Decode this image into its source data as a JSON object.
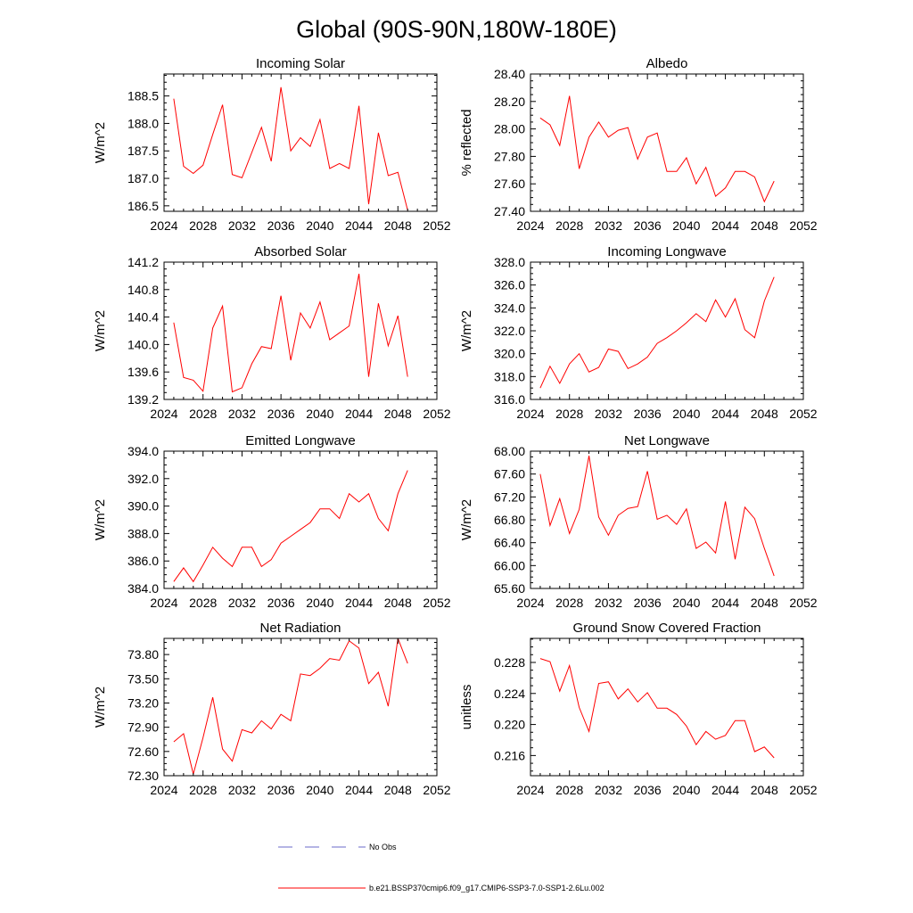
{
  "title": "Global (90S-90N,180W-180E)",
  "colors": {
    "model": "#ff0000",
    "obs": "#6a6ac8",
    "axis": "#000000"
  },
  "legend": {
    "obs_label": "No Obs",
    "model_label": "b.e21.BSSP370cmip6.f09_g17.CMIP6-SSP3-7.0-SSP1-2.6Lu.002"
  },
  "chart_data": [
    {
      "type": "line",
      "title": "Incoming Solar",
      "xlabel": "",
      "ylabel": "W/m^2",
      "xlim": [
        2024,
        2052
      ],
      "ylim": [
        186.4,
        188.9
      ],
      "grid": false,
      "xticks": [
        2024,
        2028,
        2032,
        2036,
        2040,
        2044,
        2048,
        2052
      ],
      "xtick_labels": [
        "2024",
        "2028",
        "2032",
        "2036",
        "2040",
        "2044",
        "2048",
        "2052"
      ],
      "yticks": [
        186.5,
        187.0,
        187.5,
        188.0,
        188.5
      ],
      "ytick_labels": [
        "186.5",
        "187.0",
        "187.5",
        "188.0",
        "188.5"
      ],
      "x": [
        2025,
        2026,
        2027,
        2028,
        2029,
        2030,
        2031,
        2032,
        2033,
        2034,
        2035,
        2036,
        2037,
        2038,
        2039,
        2040,
        2041,
        2042,
        2043,
        2044,
        2045,
        2046,
        2047,
        2048,
        2049
      ],
      "y": [
        188.45,
        187.22,
        187.09,
        187.24,
        187.8,
        188.34,
        187.07,
        187.01,
        187.47,
        187.93,
        187.31,
        188.66,
        187.5,
        187.74,
        187.58,
        188.07,
        187.18,
        187.27,
        187.18,
        188.32,
        186.53,
        187.83,
        187.05,
        187.11,
        186.42
      ],
      "series_name": "b.e21.BSSP370cmip6.f09_g17.CMIP6-SSP3-7.0-SSP1-2.6Lu.002"
    },
    {
      "type": "line",
      "title": "Albedo",
      "xlabel": "",
      "ylabel": "% reflected",
      "xlim": [
        2024,
        2052
      ],
      "ylim": [
        27.4,
        28.4
      ],
      "grid": false,
      "xticks": [
        2024,
        2028,
        2032,
        2036,
        2040,
        2044,
        2048,
        2052
      ],
      "xtick_labels": [
        "2024",
        "2028",
        "2032",
        "2036",
        "2040",
        "2044",
        "2048",
        "2052"
      ],
      "yticks": [
        27.4,
        27.6,
        27.8,
        28.0,
        28.2,
        28.4
      ],
      "ytick_labels": [
        "27.40",
        "27.60",
        "27.80",
        "28.00",
        "28.20",
        "28.40"
      ],
      "x": [
        2025,
        2026,
        2027,
        2028,
        2029,
        2030,
        2031,
        2032,
        2033,
        2034,
        2035,
        2036,
        2037,
        2038,
        2039,
        2040,
        2041,
        2042,
        2043,
        2044,
        2045,
        2046,
        2047,
        2048,
        2049
      ],
      "y": [
        28.08,
        28.03,
        27.88,
        28.24,
        27.71,
        27.94,
        28.05,
        27.94,
        27.99,
        28.01,
        27.78,
        27.94,
        27.97,
        27.69,
        27.69,
        27.79,
        27.6,
        27.72,
        27.51,
        27.57,
        27.69,
        27.69,
        27.65,
        27.47,
        27.62
      ],
      "series_name": "b.e21.BSSP370cmip6.f09_g17.CMIP6-SSP3-7.0-SSP1-2.6Lu.002"
    },
    {
      "type": "line",
      "title": "Absorbed Solar",
      "xlabel": "",
      "ylabel": "W/m^2",
      "xlim": [
        2024,
        2052
      ],
      "ylim": [
        139.2,
        141.2
      ],
      "grid": false,
      "xticks": [
        2024,
        2028,
        2032,
        2036,
        2040,
        2044,
        2048,
        2052
      ],
      "xtick_labels": [
        "2024",
        "2028",
        "2032",
        "2036",
        "2040",
        "2044",
        "2048",
        "2052"
      ],
      "yticks": [
        139.2,
        139.6,
        140.0,
        140.4,
        140.8,
        141.2
      ],
      "ytick_labels": [
        "139.2",
        "139.6",
        "140.0",
        "140.4",
        "140.8",
        "141.2"
      ],
      "x": [
        2025,
        2026,
        2027,
        2028,
        2029,
        2030,
        2031,
        2032,
        2033,
        2034,
        2035,
        2036,
        2037,
        2038,
        2039,
        2040,
        2041,
        2042,
        2043,
        2044,
        2045,
        2046,
        2047,
        2048,
        2049
      ],
      "y": [
        140.32,
        139.52,
        139.48,
        139.32,
        140.24,
        140.56,
        139.31,
        139.37,
        139.72,
        139.97,
        139.94,
        140.71,
        139.77,
        140.46,
        140.24,
        140.62,
        140.07,
        140.17,
        140.27,
        141.03,
        139.53,
        140.6,
        139.98,
        140.42,
        139.53
      ],
      "series_name": "b.e21.BSSP370cmip6.f09_g17.CMIP6-SSP3-7.0-SSP1-2.6Lu.002"
    },
    {
      "type": "line",
      "title": "Incoming Longwave",
      "xlabel": "",
      "ylabel": "W/m^2",
      "xlim": [
        2024,
        2052
      ],
      "ylim": [
        316.0,
        328.0
      ],
      "grid": false,
      "xticks": [
        2024,
        2028,
        2032,
        2036,
        2040,
        2044,
        2048,
        2052
      ],
      "xtick_labels": [
        "2024",
        "2028",
        "2032",
        "2036",
        "2040",
        "2044",
        "2048",
        "2052"
      ],
      "yticks": [
        316,
        318,
        320,
        322,
        324,
        326,
        328
      ],
      "ytick_labels": [
        "316.0",
        "318.0",
        "320.0",
        "322.0",
        "324.0",
        "326.0",
        "328.0"
      ],
      "x": [
        2025,
        2026,
        2027,
        2028,
        2029,
        2030,
        2031,
        2032,
        2033,
        2034,
        2035,
        2036,
        2037,
        2038,
        2039,
        2040,
        2041,
        2042,
        2043,
        2044,
        2045,
        2046,
        2047,
        2048,
        2049
      ],
      "y": [
        317.0,
        318.9,
        317.4,
        319.1,
        320.0,
        318.4,
        318.8,
        320.4,
        320.2,
        318.7,
        319.1,
        319.7,
        320.9,
        321.4,
        322.0,
        322.7,
        323.5,
        322.8,
        324.7,
        323.2,
        324.8,
        322.1,
        321.4,
        324.6,
        326.7
      ],
      "series_name": "b.e21.BSSP370cmip6.f09_g17.CMIP6-SSP3-7.0-SSP1-2.6Lu.002"
    },
    {
      "type": "line",
      "title": "Emitted Longwave",
      "xlabel": "",
      "ylabel": "W/m^2",
      "xlim": [
        2024,
        2052
      ],
      "ylim": [
        384.0,
        394.0
      ],
      "grid": false,
      "xticks": [
        2024,
        2028,
        2032,
        2036,
        2040,
        2044,
        2048,
        2052
      ],
      "xtick_labels": [
        "2024",
        "2028",
        "2032",
        "2036",
        "2040",
        "2044",
        "2048",
        "2052"
      ],
      "yticks": [
        384,
        386,
        388,
        390,
        392,
        394
      ],
      "ytick_labels": [
        "384.0",
        "386.0",
        "388.0",
        "390.0",
        "392.0",
        "394.0"
      ],
      "x": [
        2025,
        2026,
        2027,
        2028,
        2029,
        2030,
        2031,
        2032,
        2033,
        2034,
        2035,
        2036,
        2037,
        2038,
        2039,
        2040,
        2041,
        2042,
        2043,
        2044,
        2045,
        2046,
        2047,
        2048,
        2049
      ],
      "y": [
        384.5,
        385.5,
        384.5,
        385.7,
        387.0,
        386.2,
        385.6,
        387.0,
        387.0,
        385.6,
        386.1,
        387.3,
        387.8,
        388.3,
        388.8,
        389.8,
        389.8,
        389.1,
        390.9,
        390.3,
        390.9,
        389.1,
        388.2,
        390.9,
        392.6
      ],
      "series_name": "b.e21.BSSP370cmip6.f09_g17.CMIP6-SSP3-7.0-SSP1-2.6Lu.002"
    },
    {
      "type": "line",
      "title": "Net Longwave",
      "xlabel": "",
      "ylabel": "W/m^2",
      "xlim": [
        2024,
        2052
      ],
      "ylim": [
        65.6,
        68.0
      ],
      "grid": false,
      "xticks": [
        2024,
        2028,
        2032,
        2036,
        2040,
        2044,
        2048,
        2052
      ],
      "xtick_labels": [
        "2024",
        "2028",
        "2032",
        "2036",
        "2040",
        "2044",
        "2048",
        "2052"
      ],
      "yticks": [
        65.6,
        66.0,
        66.4,
        66.8,
        67.2,
        67.6,
        68.0
      ],
      "ytick_labels": [
        "65.60",
        "66.00",
        "66.40",
        "66.80",
        "67.20",
        "67.60",
        "68.00"
      ],
      "x": [
        2025,
        2026,
        2027,
        2028,
        2029,
        2030,
        2031,
        2032,
        2033,
        2034,
        2035,
        2036,
        2037,
        2038,
        2039,
        2040,
        2041,
        2042,
        2043,
        2044,
        2045,
        2046,
        2047,
        2048,
        2049
      ],
      "y": [
        67.6,
        66.7,
        67.17,
        66.56,
        66.98,
        67.92,
        66.85,
        66.53,
        66.88,
        67.0,
        67.03,
        67.65,
        66.81,
        66.88,
        66.72,
        66.99,
        66.3,
        66.41,
        66.22,
        67.12,
        66.11,
        67.02,
        66.82,
        66.3,
        65.82
      ],
      "series_name": "b.e21.BSSP370cmip6.f09_g17.CMIP6-SSP3-7.0-SSP1-2.6Lu.002"
    },
    {
      "type": "line",
      "title": "Net Radiation",
      "xlabel": "",
      "ylabel": "W/m^2",
      "xlim": [
        2024,
        2052
      ],
      "ylim": [
        72.3,
        74.0
      ],
      "grid": false,
      "xticks": [
        2024,
        2028,
        2032,
        2036,
        2040,
        2044,
        2048,
        2052
      ],
      "xtick_labels": [
        "2024",
        "2028",
        "2032",
        "2036",
        "2040",
        "2044",
        "2048",
        "2052"
      ],
      "yticks": [
        72.3,
        72.6,
        72.9,
        73.2,
        73.5,
        73.8
      ],
      "ytick_labels": [
        "72.30",
        "72.60",
        "72.90",
        "73.20",
        "73.50",
        "73.80"
      ],
      "x": [
        2025,
        2026,
        2027,
        2028,
        2029,
        2030,
        2031,
        2032,
        2033,
        2034,
        2035,
        2036,
        2037,
        2038,
        2039,
        2040,
        2041,
        2042,
        2043,
        2044,
        2045,
        2046,
        2047,
        2048,
        2049
      ],
      "y": [
        72.72,
        72.82,
        72.32,
        72.77,
        73.27,
        72.63,
        72.48,
        72.87,
        72.83,
        72.98,
        72.88,
        73.06,
        72.98,
        73.56,
        73.54,
        73.63,
        73.75,
        73.73,
        73.97,
        73.88,
        73.44,
        73.58,
        73.16,
        74.0,
        73.69
      ],
      "series_name": "b.e21.BSSP370cmip6.f09_g17.CMIP6-SSP3-7.0-SSP1-2.6Lu.002"
    },
    {
      "type": "line",
      "title": "Ground Snow Covered Fraction",
      "xlabel": "",
      "ylabel": "unitless",
      "xlim": [
        2024,
        2052
      ],
      "ylim": [
        0.2134,
        0.2311
      ],
      "grid": false,
      "xticks": [
        2024,
        2028,
        2032,
        2036,
        2040,
        2044,
        2048,
        2052
      ],
      "xtick_labels": [
        "2024",
        "2028",
        "2032",
        "2036",
        "2040",
        "2044",
        "2048",
        "2052"
      ],
      "yticks": [
        0.216,
        0.22,
        0.224,
        0.228
      ],
      "ytick_labels": [
        "0.216",
        "0.220",
        "0.224",
        "0.228"
      ],
      "x": [
        2025,
        2026,
        2027,
        2028,
        2029,
        2030,
        2031,
        2032,
        2033,
        2034,
        2035,
        2036,
        2037,
        2038,
        2039,
        2040,
        2041,
        2042,
        2043,
        2044,
        2045,
        2046,
        2047,
        2048,
        2049
      ],
      "y": [
        0.2285,
        0.2281,
        0.2243,
        0.2276,
        0.2222,
        0.2191,
        0.2253,
        0.2255,
        0.2233,
        0.2246,
        0.2229,
        0.2241,
        0.2221,
        0.2221,
        0.2213,
        0.2198,
        0.2174,
        0.2191,
        0.2181,
        0.2186,
        0.2205,
        0.2205,
        0.2165,
        0.2171,
        0.2157
      ],
      "series_name": "b.e21.BSSP370cmip6.f09_g17.CMIP6-SSP3-7.0-SSP1-2.6Lu.002"
    }
  ]
}
